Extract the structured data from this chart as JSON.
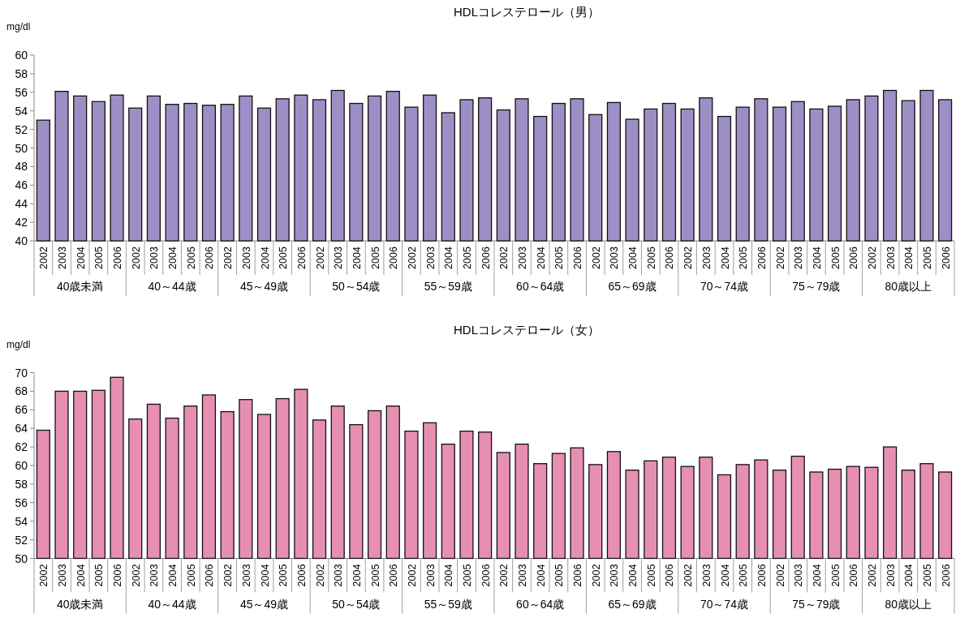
{
  "chart_data": [
    {
      "type": "bar",
      "title": "HDLコレステロール（男）",
      "ylabel": "mg/dl",
      "categories": [
        "2002",
        "2003",
        "2004",
        "2005",
        "2006",
        "2002",
        "2003",
        "2004",
        "2005",
        "2006",
        "2002",
        "2003",
        "2004",
        "2005",
        "2006",
        "2002",
        "2003",
        "2004",
        "2005",
        "2006",
        "2002",
        "2003",
        "2004",
        "2005",
        "2006",
        "2002",
        "2003",
        "2004",
        "2005",
        "2006",
        "2002",
        "2003",
        "2004",
        "2005",
        "2006",
        "2002",
        "2003",
        "2004",
        "2005",
        "2006",
        "2002",
        "2003",
        "2004",
        "2005",
        "2006",
        "2002",
        "2003",
        "2004",
        "2005",
        "2006"
      ],
      "values": [
        53.0,
        56.1,
        55.6,
        55.0,
        55.7,
        54.3,
        55.6,
        54.7,
        54.8,
        54.6,
        54.7,
        55.6,
        54.3,
        55.3,
        55.7,
        55.2,
        56.2,
        54.8,
        55.6,
        56.1,
        54.4,
        55.7,
        53.8,
        55.2,
        55.4,
        54.1,
        55.3,
        53.4,
        54.8,
        55.3,
        53.6,
        54.9,
        53.1,
        54.2,
        54.8,
        54.2,
        55.4,
        53.4,
        54.4,
        55.3,
        54.4,
        55.0,
        54.2,
        54.5,
        55.2,
        55.6,
        56.2,
        55.1,
        56.2,
        55.2
      ],
      "color": "#9d8fc6",
      "ylim": [
        40,
        60
      ],
      "yticks": [
        40,
        42,
        44,
        46,
        48,
        50,
        52,
        54,
        56,
        58,
        60
      ],
      "annotations": [
        "40歳未満",
        "40～44歳",
        "45～49歳",
        "50～54歳",
        "55～59歳",
        "60～64歳",
        "65～69歳",
        "70～74歳",
        "75～79歳",
        "80歳以上"
      ]
    },
    {
      "type": "bar",
      "title": "HDLコレステロール（女）",
      "ylabel": "mg/dl",
      "categories": [
        "2002",
        "2003",
        "2004",
        "2005",
        "2006",
        "2002",
        "2003",
        "2004",
        "2005",
        "2006",
        "2002",
        "2003",
        "2004",
        "2005",
        "2006",
        "2002",
        "2003",
        "2004",
        "2005",
        "2006",
        "2002",
        "2003",
        "2004",
        "2005",
        "2006",
        "2002",
        "2003",
        "2004",
        "2005",
        "2006",
        "2002",
        "2003",
        "2004",
        "2005",
        "2006",
        "2002",
        "2003",
        "2004",
        "2005",
        "2006",
        "2002",
        "2003",
        "2004",
        "2005",
        "2006",
        "2002",
        "2003",
        "2004",
        "2005",
        "2006"
      ],
      "values": [
        63.8,
        68.0,
        68.0,
        68.1,
        69.5,
        65.0,
        66.6,
        65.1,
        66.4,
        67.6,
        65.8,
        67.1,
        65.5,
        67.2,
        68.2,
        64.9,
        66.4,
        64.4,
        65.9,
        66.4,
        63.7,
        64.6,
        62.3,
        63.7,
        63.6,
        61.4,
        62.3,
        60.2,
        61.3,
        61.9,
        60.1,
        61.5,
        59.5,
        60.5,
        60.9,
        59.9,
        60.9,
        59.0,
        60.1,
        60.6,
        59.5,
        61.0,
        59.3,
        59.6,
        59.9,
        59.8,
        62.0,
        59.5,
        60.2,
        59.3
      ],
      "color": "#e68fb2",
      "ylim": [
        50,
        70
      ],
      "yticks": [
        50,
        52,
        54,
        56,
        58,
        60,
        62,
        64,
        66,
        68,
        70
      ],
      "annotations": [
        "40歳未満",
        "40～44歳",
        "45～49歳",
        "50～54歳",
        "55～59歳",
        "60～64歳",
        "65～69歳",
        "70～74歳",
        "75～79歳",
        "80歳以上"
      ]
    }
  ]
}
